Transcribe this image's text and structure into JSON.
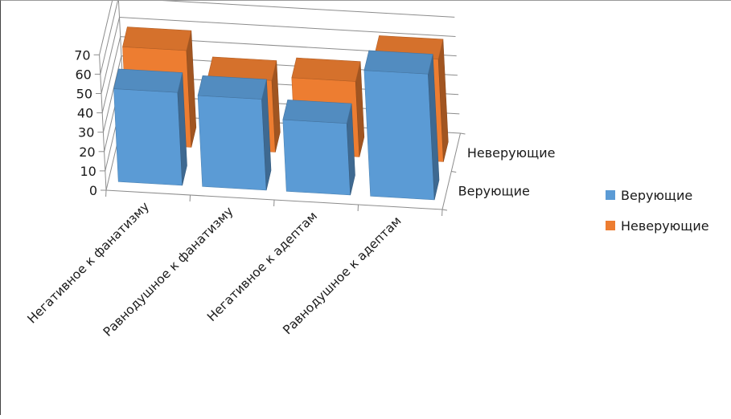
{
  "chart_data": {
    "type": "bar",
    "subtype": "3d-column",
    "categories": [
      "Негативное к фанатизму",
      "Равнодушное к фанатизму",
      "Негативное к адептам",
      "Равнодушное к адептам"
    ],
    "series": [
      {
        "name": "Верующие",
        "values": [
          48,
          47,
          37,
          65
        ],
        "color": "#5B9BD5"
      },
      {
        "name": "Неверующие",
        "values": [
          50,
          37,
          39,
          53
        ],
        "color": "#ED7D31"
      }
    ],
    "depth_labels": [
      "Неверующие",
      "Верующие"
    ],
    "y_ticks": [
      "0",
      "10",
      "20",
      "30",
      "40",
      "50",
      "60",
      "70"
    ],
    "ylim": [
      0,
      70
    ],
    "grid": true,
    "legend_position": "right",
    "title": "",
    "xlabel": "",
    "ylabel": ""
  }
}
